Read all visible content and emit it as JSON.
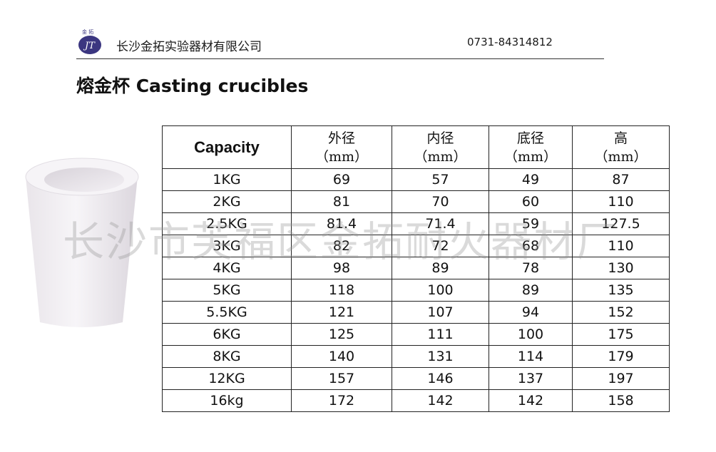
{
  "header": {
    "logo_text": "金 拓",
    "logo_letters": "JT",
    "company": "长沙金拓实验器材有限公司",
    "phone": "0731-84314812"
  },
  "title": "熔金杯  Casting crucibles",
  "table": {
    "headers": [
      {
        "line1": "Capacity",
        "line2": ""
      },
      {
        "line1": "外径",
        "line2": "（mm）"
      },
      {
        "line1": "内径",
        "line2": "（mm）"
      },
      {
        "line1": "底径",
        "line2": "（mm）"
      },
      {
        "line1": "高",
        "line2": "（mm）"
      }
    ],
    "rows": [
      [
        "1KG",
        "69",
        "57",
        "49",
        "87"
      ],
      [
        "2KG",
        "81",
        "70",
        "60",
        "110"
      ],
      [
        "2.5KG",
        "81.4",
        "71.4",
        "59",
        "127.5"
      ],
      [
        "3KG",
        "82",
        "72",
        "68",
        "110"
      ],
      [
        "4KG",
        "98",
        "89",
        "78",
        "130"
      ],
      [
        "5KG",
        "118",
        "100",
        "89",
        "135"
      ],
      [
        "5.5KG",
        "121",
        "107",
        "94",
        "152"
      ],
      [
        "6KG",
        "125",
        "111",
        "100",
        "175"
      ],
      [
        "8KG",
        "140",
        "131",
        "114",
        "179"
      ],
      [
        "12KG",
        "157",
        "146",
        "137",
        "197"
      ],
      [
        "16kg",
        "172",
        "142",
        "142",
        "158"
      ]
    ]
  },
  "watermark": "长沙市芙福区金拓耐火器材厂",
  "colors": {
    "logo": "#3b3680",
    "crucible": "#f1eef2"
  }
}
